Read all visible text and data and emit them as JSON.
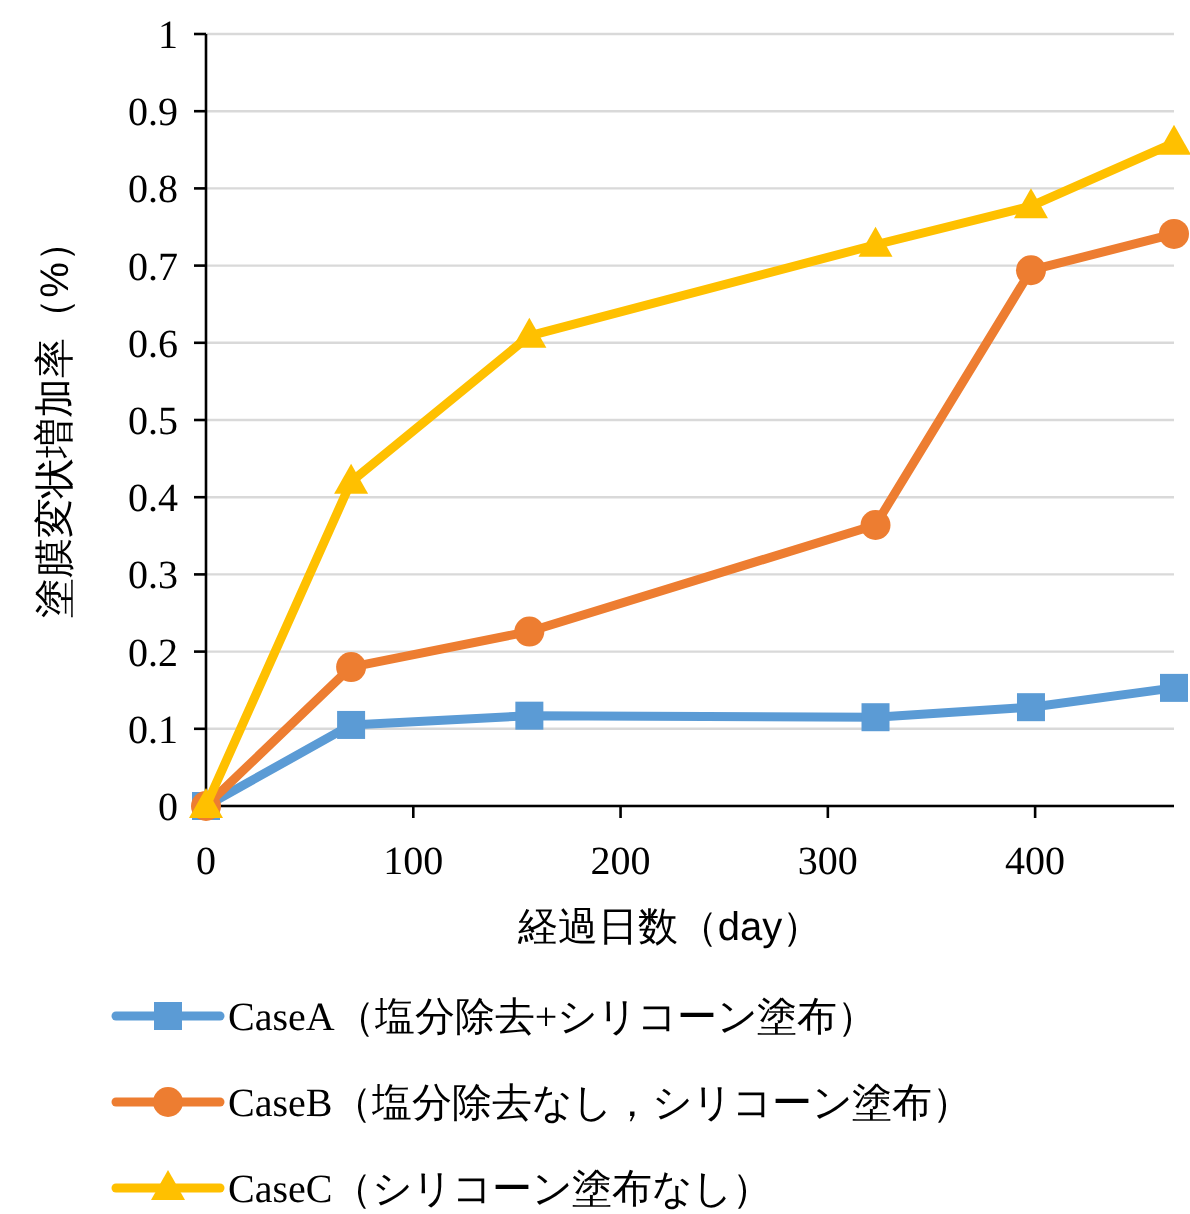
{
  "chart_data": {
    "type": "line",
    "xlabel": "経過日数（day）",
    "ylabel": "塗膜変状増加率（%）",
    "x": [
      0,
      70,
      156,
      323,
      398,
      467
    ],
    "series": [
      {
        "name": "CaseA（塩分除去+シリコーン塗布）",
        "color": "#5b9bd5",
        "marker": "square",
        "values": [
          0,
          0.105,
          0.117,
          0.115,
          0.128,
          0.153
        ]
      },
      {
        "name": "CaseB（塩分除去なし，シリコーン塗布）",
        "color": "#ed7d31",
        "marker": "circle",
        "values": [
          0,
          0.18,
          0.226,
          0.364,
          0.694,
          0.741
        ]
      },
      {
        "name": "CaseC（シリコーン塗布なし）",
        "color": "#ffc000",
        "marker": "triangle",
        "values": [
          0,
          0.42,
          0.609,
          0.727,
          0.777,
          0.859
        ]
      }
    ],
    "xlim": [
      0,
      467
    ],
    "xticks": [
      0,
      100,
      200,
      300,
      400
    ],
    "ylim": [
      0,
      1
    ],
    "yticks": [
      0,
      0.1,
      0.2,
      0.3,
      0.4,
      0.5,
      0.6,
      0.7,
      0.8,
      0.9,
      1
    ],
    "grid": "y",
    "legend": "bottom",
    "line_style": "solid"
  }
}
